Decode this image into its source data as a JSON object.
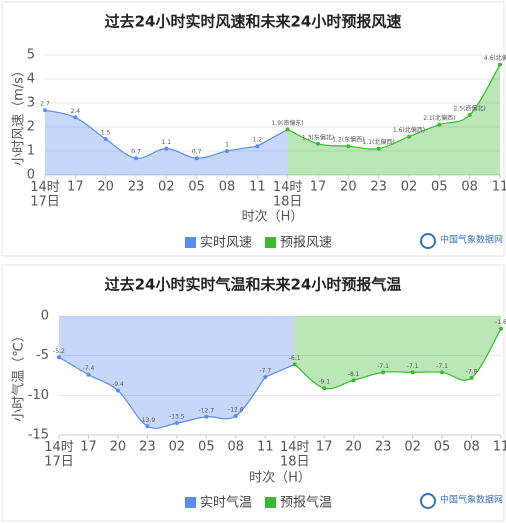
{
  "chart_data": [
    {
      "type": "line",
      "title": "过去24小时实时风速和未来24小时预报风速",
      "y_label": "小时风速（m/s）",
      "x_label": "时次（H）",
      "logo": "中国气象数据网",
      "categories": [
        "14时\n17日",
        "17",
        "20",
        "23",
        "02",
        "05",
        "08",
        "11",
        "14时\n18日",
        "17",
        "20",
        "23",
        "02",
        "05",
        "08",
        "11"
      ],
      "ylim": [
        0,
        5
      ],
      "yticks": [
        0,
        1,
        2,
        3,
        4,
        5
      ],
      "grid": true,
      "series": [
        {
          "name": "实时风速",
          "color": "#5b8def",
          "values": [
            2.7,
            2.4,
            1.5,
            0.7,
            1.1,
            0.7,
            1.0,
            1.2,
            null,
            null,
            null,
            null,
            null,
            null,
            null,
            null
          ]
        },
        {
          "name": "预报风速",
          "color": "#3cb832",
          "values": [
            null,
            null,
            null,
            null,
            null,
            null,
            null,
            null,
            1.9,
            1.3,
            1.2,
            1.1,
            1.6,
            2.1,
            2.5,
            4.6
          ],
          "value_labels": [
            null,
            null,
            null,
            null,
            null,
            null,
            null,
            null,
            "1.9(南偏东)",
            "1.3(东偏北)",
            "1.2(东偏西)",
            "1.1(北偏西)",
            "1.6(北偏西)",
            "2.1(北偏西)",
            "2.5(西偏北)",
            "4.6(北偏西)"
          ]
        }
      ]
    },
    {
      "type": "line",
      "title": "过去24小时实时气温和未来24小时预报气温",
      "y_label": "小时气温（℃）",
      "x_label": "时次（H）",
      "logo": "中国气象数据网",
      "categories": [
        "14时\n17日",
        "17",
        "20",
        "23",
        "02",
        "05",
        "08",
        "11",
        "14时\n18日",
        "17",
        "20",
        "23",
        "02",
        "05",
        "08",
        "11"
      ],
      "ylim": [
        -15,
        0
      ],
      "yticks": [
        0,
        -5,
        -10,
        -15
      ],
      "grid": true,
      "series": [
        {
          "name": "实时气温",
          "color": "#5b8def",
          "values": [
            -5.2,
            -7.4,
            -9.4,
            -13.9,
            -13.5,
            -12.7,
            -12.6,
            -7.7,
            null,
            null,
            null,
            null,
            null,
            null,
            null,
            null
          ]
        },
        {
          "name": "预报气温",
          "color": "#3cb832",
          "values": [
            null,
            null,
            null,
            null,
            null,
            null,
            null,
            null,
            -6.1,
            -9.1,
            -8.1,
            -7.1,
            -7.1,
            -7.1,
            -7.8,
            -1.6
          ]
        }
      ]
    }
  ]
}
